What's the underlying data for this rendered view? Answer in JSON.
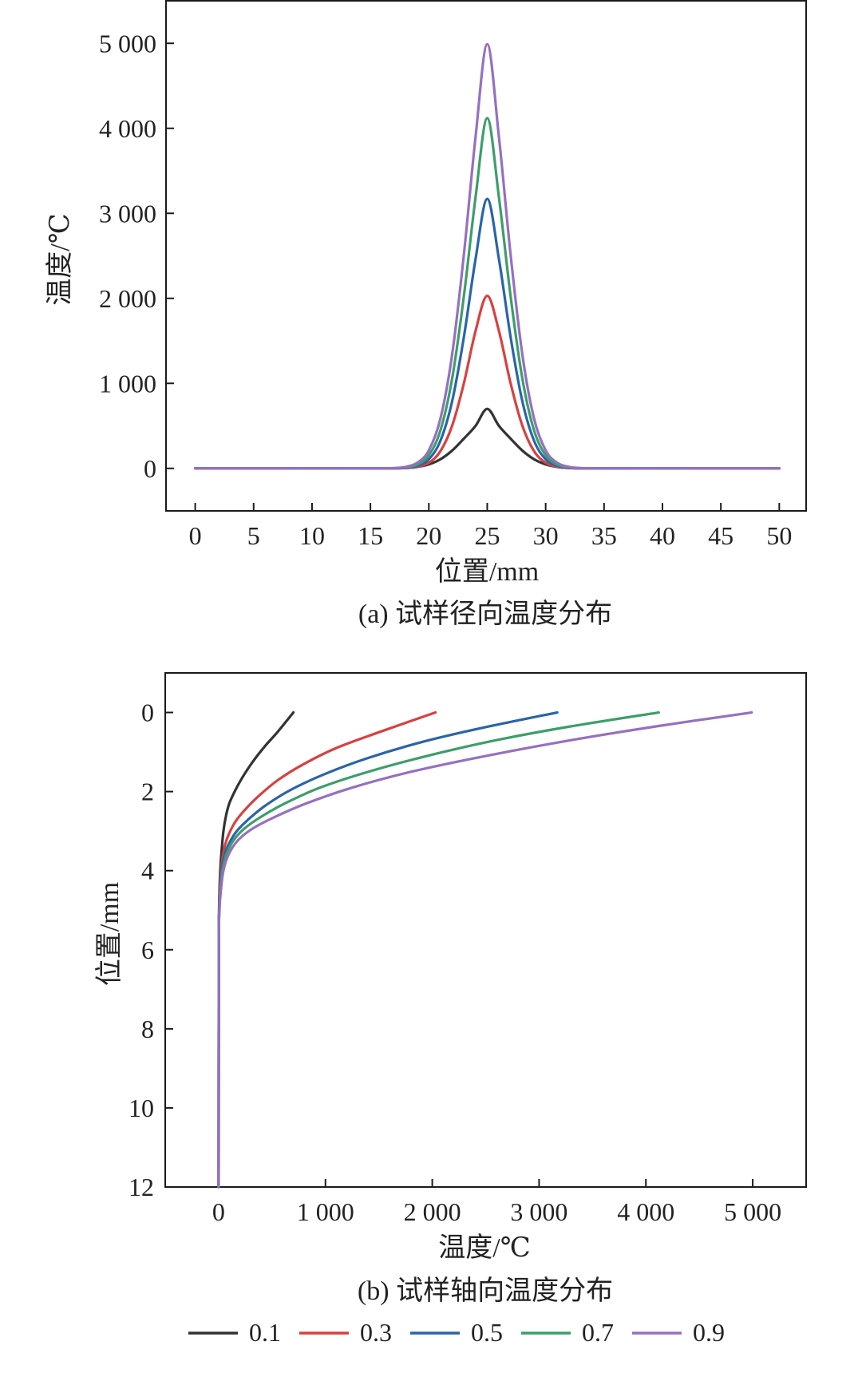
{
  "chart_data": [
    {
      "type": "line",
      "title": "(a) 试样径向温度分布",
      "xlabel": "位置/mm",
      "ylabel": "温度/℃",
      "xlim": [
        -2.5,
        52.3
      ],
      "ylim": [
        -500,
        5500
      ],
      "xticks": [
        0,
        5,
        10,
        15,
        20,
        25,
        30,
        35,
        40,
        45,
        50
      ],
      "xtick_labels": [
        "0",
        "5",
        "10",
        "15",
        "20",
        "25",
        "30",
        "35",
        "40",
        "45",
        "50"
      ],
      "yticks": [
        0,
        1000,
        2000,
        3000,
        4000,
        5000
      ],
      "ytick_labels": [
        "0",
        "1 000",
        "2 000",
        "3 000",
        "4 000",
        "5 000"
      ],
      "grid": false,
      "series": [
        {
          "name": "0.1",
          "color": "#333333",
          "x": [
            0,
            16,
            17,
            18,
            19,
            20,
            21,
            22,
            23,
            24,
            25,
            26,
            27,
            28,
            29,
            30,
            31,
            32,
            33,
            34,
            50
          ],
          "y": [
            0,
            0,
            1,
            5,
            17,
            47,
            108,
            210,
            350,
            500,
            700,
            500,
            350,
            210,
            108,
            47,
            17,
            5,
            1,
            0,
            0
          ]
        },
        {
          "name": "0.3",
          "color": "#d94040",
          "x": [
            0,
            16,
            17,
            18,
            19,
            20,
            21,
            22,
            23,
            24,
            25,
            26,
            27,
            28,
            29,
            30,
            31,
            32,
            33,
            34,
            50
          ],
          "y": [
            0,
            0,
            1,
            4,
            17,
            66,
            204,
            504,
            1001,
            1617,
            2030,
            1617,
            1001,
            504,
            204,
            66,
            17,
            4,
            1,
            0,
            0
          ]
        },
        {
          "name": "0.5",
          "color": "#2a64aa",
          "x": [
            0,
            16,
            17,
            18,
            19,
            20,
            21,
            22,
            23,
            24,
            25,
            26,
            27,
            28,
            29,
            30,
            31,
            32,
            33,
            34,
            50
          ],
          "y": [
            0,
            0,
            2,
            7,
            29,
            108,
            328,
            793,
            1545,
            2463,
            3170,
            2463,
            1545,
            793,
            328,
            108,
            29,
            7,
            2,
            0,
            0
          ]
        },
        {
          "name": "0.7",
          "color": "#3c9e6a",
          "x": [
            0,
            16,
            17,
            18,
            19,
            20,
            21,
            22,
            23,
            24,
            25,
            26,
            27,
            28,
            29,
            30,
            31,
            32,
            33,
            34,
            50
          ],
          "y": [
            0,
            0,
            2,
            11,
            44,
            155,
            451,
            1061,
            2025,
            3190,
            4120,
            3190,
            2025,
            1061,
            451,
            155,
            44,
            11,
            2,
            0,
            0
          ]
        },
        {
          "name": "0.9",
          "color": "#9570c0",
          "x": [
            0,
            16,
            17,
            18,
            19,
            20,
            21,
            22,
            23,
            24,
            25,
            26,
            27,
            28,
            29,
            30,
            31,
            32,
            33,
            34,
            50
          ],
          "y": [
            0,
            1,
            4,
            17,
            65,
            211,
            590,
            1344,
            2514,
            3899,
            4990,
            3899,
            2514,
            1344,
            590,
            211,
            65,
            17,
            4,
            1,
            0
          ]
        }
      ]
    },
    {
      "type": "line",
      "title": "(b) 试样轴向温度分布",
      "xlabel": "温度/℃",
      "ylabel": "位置/mm",
      "xlim": [
        -500,
        5500
      ],
      "ylim": [
        12,
        -1
      ],
      "y_inverted": true,
      "xticks": [
        0,
        1000,
        2000,
        3000,
        4000,
        5000
      ],
      "xtick_labels": [
        "0",
        "1 000",
        "2 000",
        "3 000",
        "4 000",
        "5 000"
      ],
      "yticks": [
        0,
        2,
        4,
        6,
        8,
        10,
        12
      ],
      "ytick_labels": [
        "0",
        "2",
        "4",
        "6",
        "8",
        "10",
        "12"
      ],
      "grid": false,
      "legend_position": "bottom",
      "series": [
        {
          "name": "0.1",
          "color": "#333333",
          "temperature": [
            700,
            550,
            450,
            360,
            280,
            210,
            150,
            100,
            70,
            45,
            28,
            15,
            8,
            4,
            2,
            0
          ],
          "position": [
            0,
            0.5,
            0.8,
            1.1,
            1.4,
            1.7,
            2.0,
            2.3,
            2.6,
            3.0,
            3.5,
            4.0,
            4.5,
            5.0,
            6.0,
            12
          ]
        },
        {
          "name": "0.3",
          "color": "#d94040",
          "temperature": [
            2030,
            1500,
            1100,
            800,
            560,
            380,
            250,
            160,
            100,
            60,
            35,
            18,
            9,
            5,
            2,
            0
          ],
          "position": [
            0,
            0.5,
            0.9,
            1.3,
            1.7,
            2.1,
            2.45,
            2.75,
            3.05,
            3.35,
            3.7,
            4.1,
            4.6,
            5.1,
            6.0,
            12
          ]
        },
        {
          "name": "0.5",
          "color": "#2a64aa",
          "temperature": [
            3170,
            2450,
            1900,
            1400,
            1000,
            680,
            440,
            280,
            170,
            100,
            55,
            28,
            14,
            6,
            2,
            0
          ],
          "position": [
            0,
            0.4,
            0.75,
            1.15,
            1.55,
            1.95,
            2.35,
            2.7,
            3.0,
            3.3,
            3.6,
            4.0,
            4.5,
            5.0,
            6.0,
            12
          ]
        },
        {
          "name": "0.7",
          "color": "#3c9e6a",
          "temperature": [
            4120,
            3300,
            2600,
            1950,
            1400,
            950,
            620,
            390,
            235,
            135,
            72,
            36,
            17,
            7,
            2,
            0
          ],
          "position": [
            0,
            0.35,
            0.7,
            1.1,
            1.5,
            1.9,
            2.3,
            2.65,
            2.95,
            3.25,
            3.6,
            4.0,
            4.5,
            5.0,
            6.0,
            12
          ]
        },
        {
          "name": "0.9",
          "color": "#9570c0",
          "temperature": [
            4990,
            4100,
            3300,
            2500,
            1800,
            1250,
            820,
            520,
            310,
            175,
            92,
            45,
            21,
            8,
            2,
            0
          ],
          "position": [
            0,
            0.35,
            0.7,
            1.1,
            1.5,
            1.9,
            2.3,
            2.65,
            2.95,
            3.25,
            3.6,
            4.0,
            4.5,
            5.0,
            6.0,
            12
          ]
        }
      ]
    }
  ],
  "legend": {
    "items": [
      {
        "label": "0.1",
        "color": "#333333"
      },
      {
        "label": "0.3",
        "color": "#d94040"
      },
      {
        "label": "0.5",
        "color": "#2a64aa"
      },
      {
        "label": "0.7",
        "color": "#3c9e6a"
      },
      {
        "label": "0.9",
        "color": "#9570c0"
      }
    ]
  }
}
